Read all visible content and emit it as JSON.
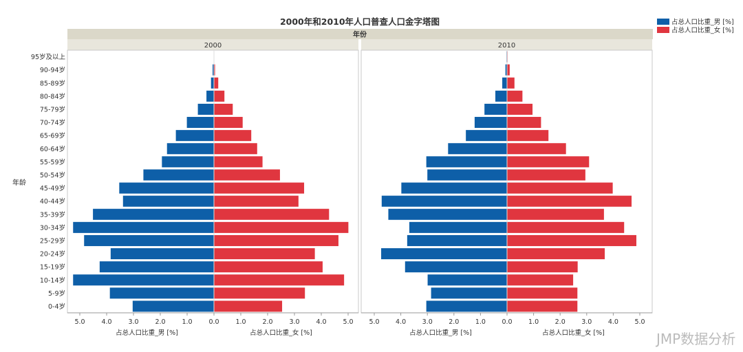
{
  "chart_data": {
    "type": "bar",
    "subtype": "population-pyramid",
    "title": "2000年和2010年人口普查人口金字塔图",
    "group_header": "年份",
    "ylabel": "年龄",
    "categories": [
      "95岁及以上",
      "90-94岁",
      "85-89岁",
      "80-84岁",
      "75-79岁",
      "70-74岁",
      "65-69岁",
      "60-64岁",
      "55-59岁",
      "50-54岁",
      "45-49岁",
      "40-44岁",
      "35-39岁",
      "30-34岁",
      "25-29岁",
      "20-24岁",
      "15-19岁",
      "10-14岁",
      "5-9岁",
      "0-4岁"
    ],
    "xlabel_left": "占总人口比重_男 [%]",
    "xlabel_right": "占总人口比重_女 [%]",
    "xlim": [
      0,
      5.0
    ],
    "ticks_left": [
      "5.0",
      "4.0",
      "3.0",
      "2.0",
      "1.0",
      "0.0"
    ],
    "ticks_right": [
      "0.0",
      "1.0",
      "2.0",
      "3.0",
      "4.0",
      "5.0"
    ],
    "legend": {
      "placement": "top-right",
      "items": [
        {
          "label": "占总人口比重_男 [%]",
          "color": "#0e5fa8"
        },
        {
          "label": "占总人口比重_女 [%]",
          "color": "#e0363f"
        }
      ]
    },
    "panels": [
      {
        "label": "2000",
        "male": [
          0.01,
          0.05,
          0.11,
          0.28,
          0.6,
          1.01,
          1.42,
          1.75,
          1.94,
          2.63,
          3.53,
          3.39,
          4.51,
          5.25,
          4.84,
          3.85,
          4.26,
          5.25,
          3.88,
          3.03
        ],
        "female": [
          0.01,
          0.04,
          0.16,
          0.39,
          0.7,
          1.07,
          1.39,
          1.61,
          1.81,
          2.46,
          3.36,
          3.15,
          4.29,
          5.01,
          4.64,
          3.76,
          4.05,
          4.85,
          3.39,
          2.54
        ]
      },
      {
        "label": "2010",
        "male": [
          0.02,
          0.06,
          0.18,
          0.44,
          0.85,
          1.22,
          1.55,
          2.22,
          3.04,
          3.0,
          3.98,
          4.72,
          4.47,
          3.68,
          3.76,
          4.74,
          3.84,
          2.99,
          2.86,
          3.04
        ],
        "female": [
          0.02,
          0.1,
          0.28,
          0.58,
          0.96,
          1.28,
          1.56,
          2.22,
          3.09,
          2.95,
          3.98,
          4.69,
          3.65,
          4.41,
          4.87,
          3.68,
          2.66,
          2.49,
          2.65,
          2.65
        ]
      }
    ]
  },
  "watermark": "JMP数据分析"
}
